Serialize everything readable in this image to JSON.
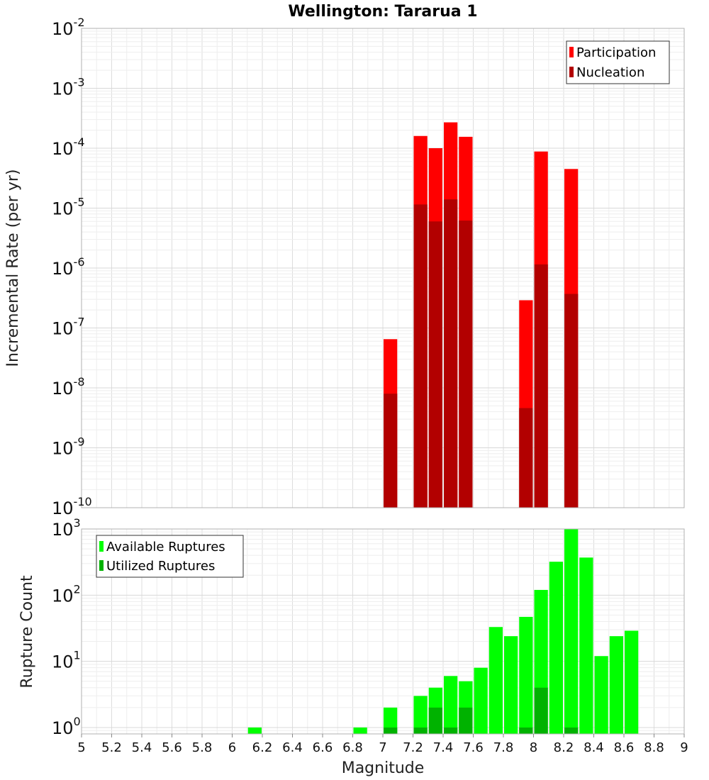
{
  "chart_data": [
    {
      "type": "bar",
      "title": "Wellington: Tararua 1",
      "ylabel": "Incremental Rate (per yr)",
      "yscale": "log",
      "ylim": [
        1e-10,
        0.01
      ],
      "xlim": [
        5,
        9
      ],
      "bar_width": 0.1,
      "grid": true,
      "legend_position": "top-right",
      "series": [
        {
          "name": "Participation",
          "color": "#ff0000",
          "points": [
            {
              "x": 7.05,
              "y": 6.5e-08
            },
            {
              "x": 7.25,
              "y": 0.00016
            },
            {
              "x": 7.35,
              "y": 0.0001
            },
            {
              "x": 7.45,
              "y": 0.00027
            },
            {
              "x": 7.55,
              "y": 0.000155
            },
            {
              "x": 7.95,
              "y": 2.9e-07
            },
            {
              "x": 8.05,
              "y": 8.8e-05
            },
            {
              "x": 8.25,
              "y": 4.5e-05
            }
          ]
        },
        {
          "name": "Nucleation",
          "color": "#b20000",
          "points": [
            {
              "x": 7.05,
              "y": 8e-09
            },
            {
              "x": 7.25,
              "y": 1.15e-05
            },
            {
              "x": 7.35,
              "y": 6e-06
            },
            {
              "x": 7.45,
              "y": 1.4e-05
            },
            {
              "x": 7.55,
              "y": 6.2e-06
            },
            {
              "x": 7.95,
              "y": 4.6e-09
            },
            {
              "x": 8.05,
              "y": 1.15e-06
            },
            {
              "x": 8.25,
              "y": 3.7e-07
            }
          ]
        }
      ]
    },
    {
      "type": "bar",
      "xlabel": "Magnitude",
      "ylabel": "Rupture Count",
      "yscale": "log",
      "ylim": [
        0.8,
        1000
      ],
      "xlim": [
        5,
        9
      ],
      "x_ticks": [
        5,
        5.2,
        5.4,
        5.6,
        5.8,
        6,
        6.2,
        6.4,
        6.6,
        6.8,
        7,
        7.2,
        7.4,
        7.6,
        7.8,
        8,
        8.2,
        8.4,
        8.6,
        8.8,
        9
      ],
      "bar_width": 0.1,
      "grid": true,
      "legend_position": "top-left",
      "series": [
        {
          "name": "Available Ruptures",
          "color": "#00ff00",
          "points": [
            {
              "x": 6.15,
              "y": 1
            },
            {
              "x": 6.85,
              "y": 1
            },
            {
              "x": 7.05,
              "y": 2
            },
            {
              "x": 7.25,
              "y": 3
            },
            {
              "x": 7.35,
              "y": 4
            },
            {
              "x": 7.45,
              "y": 6
            },
            {
              "x": 7.55,
              "y": 5
            },
            {
              "x": 7.65,
              "y": 8
            },
            {
              "x": 7.75,
              "y": 33
            },
            {
              "x": 7.85,
              "y": 24
            },
            {
              "x": 7.95,
              "y": 47
            },
            {
              "x": 8.05,
              "y": 120
            },
            {
              "x": 8.15,
              "y": 320
            },
            {
              "x": 8.25,
              "y": 1000
            },
            {
              "x": 8.35,
              "y": 370
            },
            {
              "x": 8.45,
              "y": 12
            },
            {
              "x": 8.55,
              "y": 24
            },
            {
              "x": 8.65,
              "y": 29
            }
          ]
        },
        {
          "name": "Utilized Ruptures",
          "color": "#00b200",
          "points": [
            {
              "x": 7.05,
              "y": 1
            },
            {
              "x": 7.25,
              "y": 1
            },
            {
              "x": 7.35,
              "y": 2
            },
            {
              "x": 7.45,
              "y": 1
            },
            {
              "x": 7.55,
              "y": 2
            },
            {
              "x": 7.95,
              "y": 1
            },
            {
              "x": 8.05,
              "y": 4
            },
            {
              "x": 8.25,
              "y": 1
            }
          ]
        }
      ]
    }
  ]
}
